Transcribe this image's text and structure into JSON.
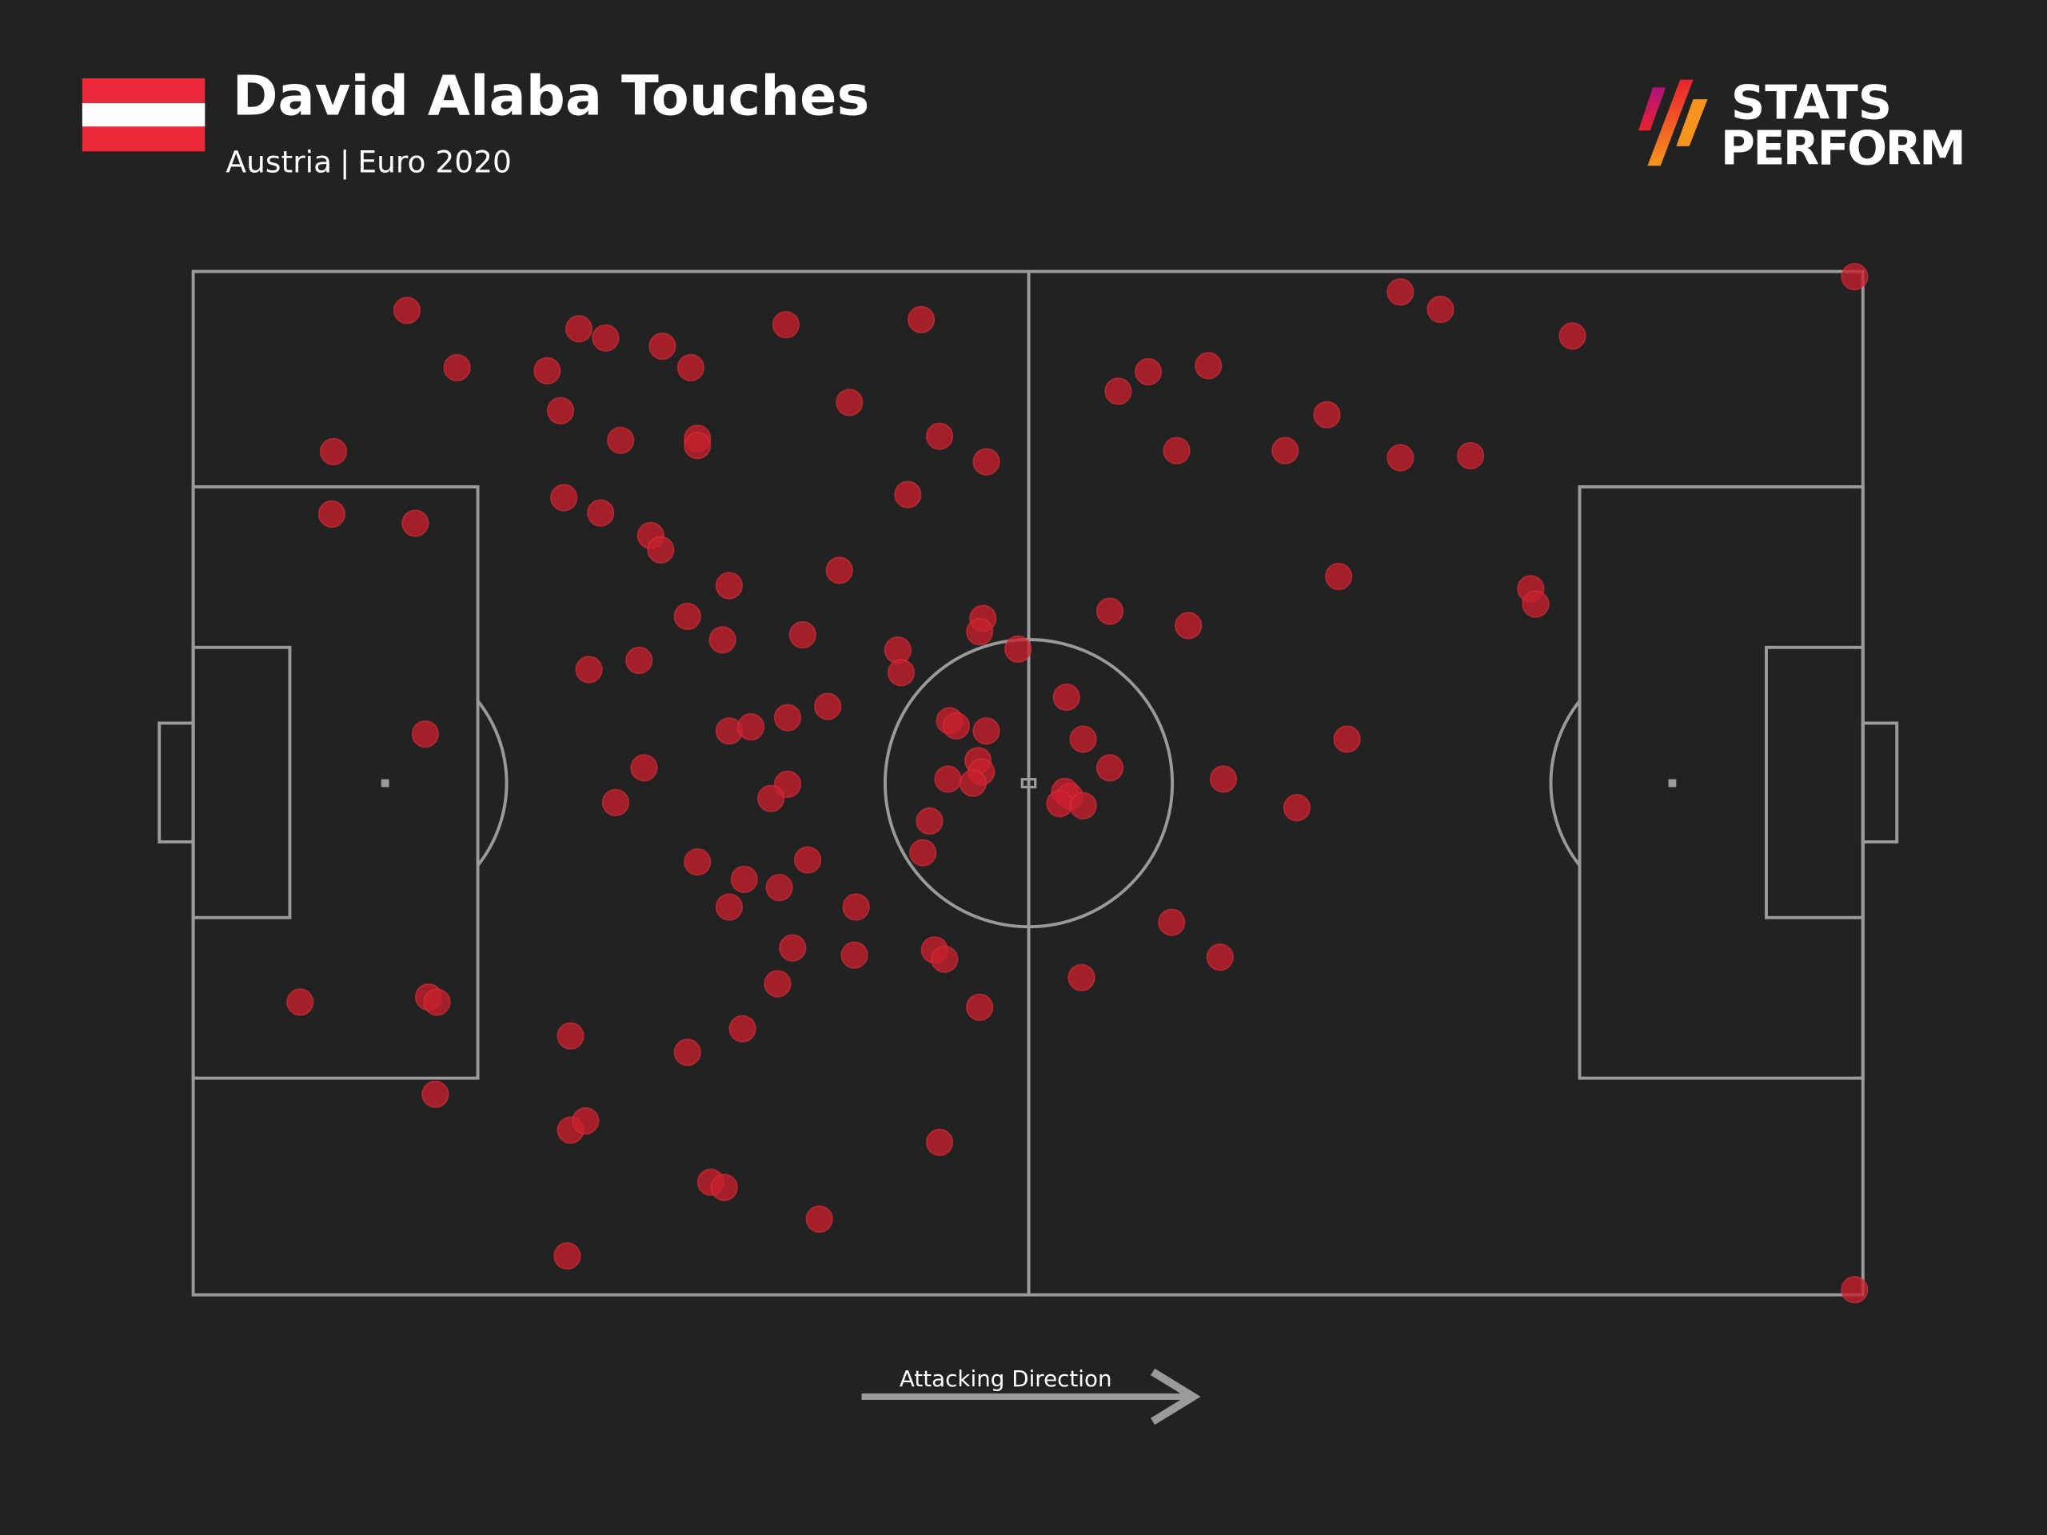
{
  "header": {
    "title": "David Alaba Touches",
    "team": "Austria",
    "competition": "Euro 2020",
    "flag_colors": [
      "#ed2939",
      "#ffffff",
      "#ed2939"
    ]
  },
  "logo": {
    "line1": "STATS",
    "line2": "PERFORM",
    "colors": [
      "#b0127a",
      "#e8222e",
      "#f7941d"
    ]
  },
  "footer": {
    "direction_label": "Attacking Direction",
    "direction": "right"
  },
  "colors": {
    "background": "#222222",
    "pitch_lines": "#9a9a9a",
    "touch": "#c8202d"
  },
  "chart_data": {
    "type": "scatter",
    "title": "David Alaba Touches",
    "subtitle": "Austria | Euro 2020",
    "coordinate_system": "pitch 0-100 (x: own goal to opponent goal, y: top touchline to bottom touchline)",
    "xlim": [
      0,
      100
    ],
    "ylim": [
      0,
      100
    ],
    "grid": false,
    "points": [
      [
        12.8,
        3.8
      ],
      [
        15.8,
        9.4
      ],
      [
        23.1,
        5.6
      ],
      [
        24.7,
        6.5
      ],
      [
        21.2,
        9.7
      ],
      [
        28.1,
        7.3
      ],
      [
        29.8,
        9.4
      ],
      [
        35.5,
        5.2
      ],
      [
        43.6,
        4.7
      ],
      [
        22.0,
        13.6
      ],
      [
        25.6,
        16.5
      ],
      [
        30.2,
        16.3
      ],
      [
        30.2,
        17.0
      ],
      [
        39.3,
        12.8
      ],
      [
        44.7,
        16.1
      ],
      [
        47.5,
        18.6
      ],
      [
        8.4,
        17.6
      ],
      [
        8.3,
        23.7
      ],
      [
        13.3,
        24.6
      ],
      [
        22.2,
        22.1
      ],
      [
        24.4,
        23.6
      ],
      [
        27.4,
        25.8
      ],
      [
        28.0,
        27.2
      ],
      [
        42.8,
        21.8
      ],
      [
        32.1,
        30.7
      ],
      [
        38.7,
        29.2
      ],
      [
        29.6,
        33.7
      ],
      [
        31.7,
        36.0
      ],
      [
        36.5,
        35.5
      ],
      [
        47.3,
        33.9
      ],
      [
        47.1,
        35.2
      ],
      [
        42.2,
        37.0
      ],
      [
        42.4,
        39.2
      ],
      [
        49.4,
        36.9
      ],
      [
        23.7,
        38.9
      ],
      [
        26.7,
        38.0
      ],
      [
        13.9,
        45.2
      ],
      [
        32.1,
        44.9
      ],
      [
        33.4,
        44.5
      ],
      [
        35.6,
        43.6
      ],
      [
        38.0,
        42.5
      ],
      [
        45.3,
        43.9
      ],
      [
        45.7,
        44.4
      ],
      [
        47.5,
        44.9
      ],
      [
        27.0,
        48.5
      ],
      [
        25.3,
        51.9
      ],
      [
        35.6,
        50.1
      ],
      [
        34.6,
        51.5
      ],
      [
        45.2,
        49.6
      ],
      [
        47.0,
        47.8
      ],
      [
        47.2,
        48.9
      ],
      [
        46.7,
        50.0
      ],
      [
        44.1,
        53.7
      ],
      [
        43.7,
        56.8
      ],
      [
        30.2,
        57.7
      ],
      [
        33.0,
        59.4
      ],
      [
        35.1,
        60.2
      ],
      [
        36.8,
        57.5
      ],
      [
        32.1,
        62.1
      ],
      [
        39.7,
        62.1
      ],
      [
        35.9,
        66.1
      ],
      [
        39.6,
        66.8
      ],
      [
        44.4,
        66.3
      ],
      [
        45.0,
        67.2
      ],
      [
        35.0,
        69.6
      ],
      [
        47.1,
        71.9
      ],
      [
        32.9,
        74.0
      ],
      [
        29.6,
        76.3
      ],
      [
        22.6,
        74.7
      ],
      [
        6.4,
        71.4
      ],
      [
        14.1,
        70.9
      ],
      [
        14.6,
        71.4
      ],
      [
        14.5,
        80.4
      ],
      [
        22.6,
        83.9
      ],
      [
        23.5,
        83.0
      ],
      [
        44.7,
        85.1
      ],
      [
        31.0,
        89.0
      ],
      [
        31.8,
        89.5
      ],
      [
        37.5,
        92.6
      ],
      [
        22.4,
        96.2
      ],
      [
        72.3,
        2.0
      ],
      [
        74.7,
        3.7
      ],
      [
        82.6,
        6.3
      ],
      [
        99.5,
        0.5
      ],
      [
        55.4,
        11.7
      ],
      [
        57.2,
        9.8
      ],
      [
        60.8,
        9.2
      ],
      [
        58.9,
        17.5
      ],
      [
        65.4,
        17.5
      ],
      [
        67.9,
        14.0
      ],
      [
        72.3,
        18.2
      ],
      [
        76.5,
        18.0
      ],
      [
        68.6,
        29.8
      ],
      [
        80.1,
        31.0
      ],
      [
        80.4,
        32.5
      ],
      [
        54.9,
        33.2
      ],
      [
        59.6,
        34.6
      ],
      [
        52.3,
        41.6
      ],
      [
        53.3,
        45.7
      ],
      [
        54.9,
        48.5
      ],
      [
        69.1,
        45.7
      ],
      [
        61.7,
        49.6
      ],
      [
        66.1,
        52.4
      ],
      [
        52.2,
        50.8
      ],
      [
        52.5,
        51.3
      ],
      [
        51.9,
        52.0
      ],
      [
        53.3,
        52.2
      ],
      [
        58.6,
        63.6
      ],
      [
        61.5,
        67.0
      ],
      [
        53.2,
        69.0
      ],
      [
        99.5,
        99.5
      ]
    ]
  }
}
